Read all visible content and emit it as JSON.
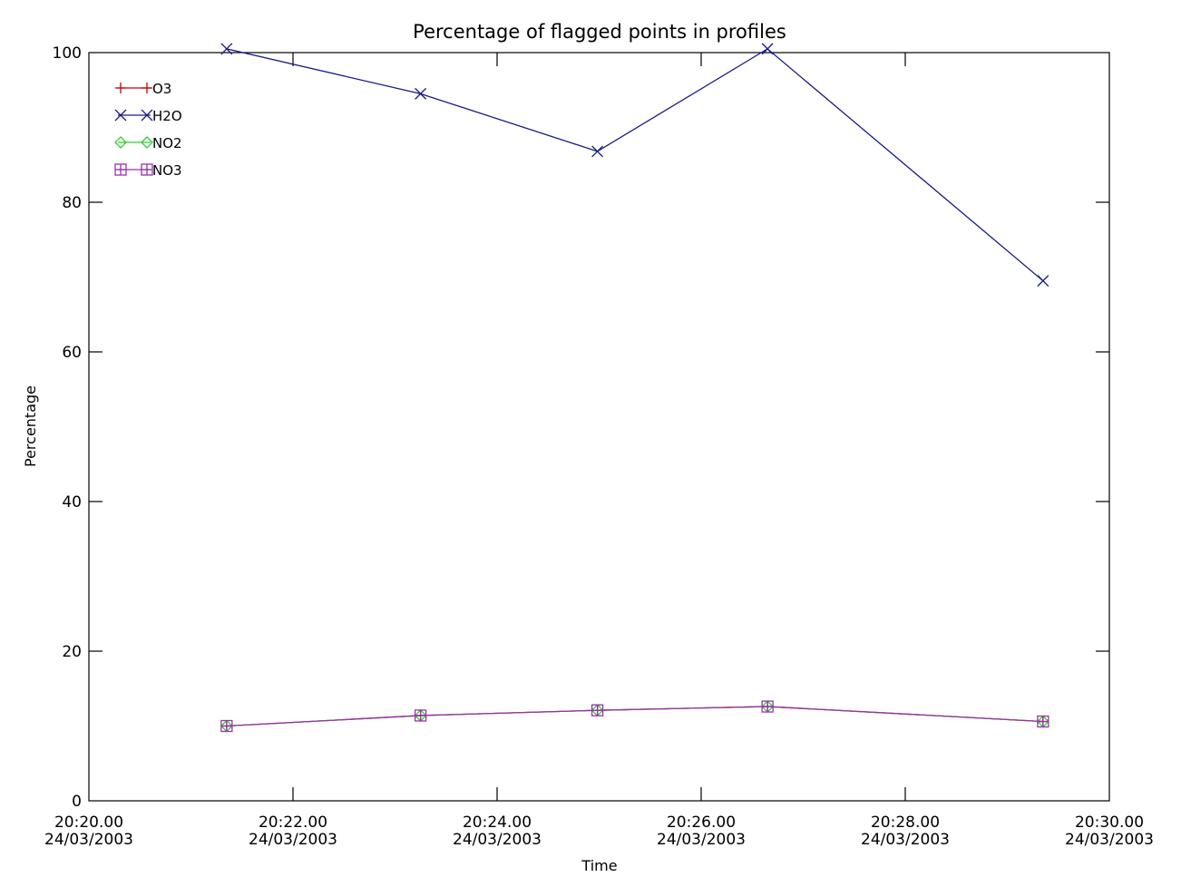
{
  "chart_data": {
    "type": "line",
    "title": "Percentage of flagged points in profiles",
    "xlabel": "Time",
    "ylabel": "Percentage",
    "xlim": [
      "2003-03-24T20:20:00",
      "2003-03-24T20:30:00"
    ],
    "ylim": [
      0,
      100
    ],
    "grid": false,
    "legend_position": "top-left",
    "x_ticks": [
      {
        "time": "20:20.00",
        "date": "24/03/2003"
      },
      {
        "time": "20:22.00",
        "date": "24/03/2003"
      },
      {
        "time": "20:24.00",
        "date": "24/03/2003"
      },
      {
        "time": "20:26.00",
        "date": "24/03/2003"
      },
      {
        "time": "20:28.00",
        "date": "24/03/2003"
      },
      {
        "time": "20:30.00",
        "date": "24/03/2003"
      }
    ],
    "y_ticks": [
      "0",
      "20",
      "40",
      "60",
      "80",
      "100"
    ],
    "x": [
      "2003-03-24T20:21:21",
      "2003-03-24T20:23:15",
      "2003-03-24T20:24:59",
      "2003-03-24T20:26:39",
      "2003-03-24T20:29:21"
    ],
    "series": [
      {
        "name": "O3",
        "color": "#cc0000",
        "marker": "plus",
        "values": [
          10,
          11.4,
          12.1,
          12.6,
          10.6
        ]
      },
      {
        "name": "H2O",
        "color": "#1a1a8c",
        "marker": "x",
        "values": [
          100.5,
          94.5,
          86.8,
          100.5,
          69.5
        ]
      },
      {
        "name": "NO2",
        "color": "#33cc33",
        "marker": "diamond",
        "values": [
          10,
          11.4,
          12.1,
          12.6,
          10.6
        ]
      },
      {
        "name": "NO3",
        "color": "#9933aa",
        "marker": "square",
        "values": [
          10,
          11.4,
          12.1,
          12.6,
          10.6
        ]
      }
    ]
  }
}
